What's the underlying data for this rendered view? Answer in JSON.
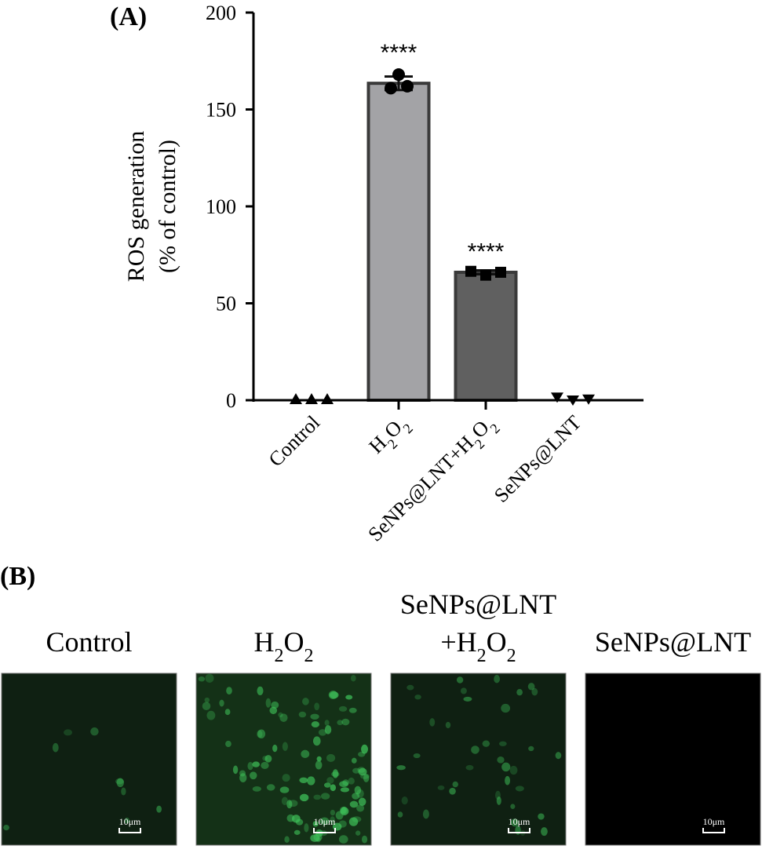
{
  "panel_a_label": "(A)",
  "panel_b_label": "(B)",
  "chart_data": {
    "type": "bar",
    "title": "",
    "ylabel_lines": [
      "ROS generation",
      "(% of control)"
    ],
    "xlabel": "",
    "ylim": [
      0,
      200
    ],
    "yticks": [
      0,
      50,
      100,
      150,
      200
    ],
    "categories": [
      "Control",
      "H2O2",
      "SeNPs@LNT+H2O2",
      "SeNPs@LNT"
    ],
    "values": [
      0,
      163.5,
      66,
      0.7
    ],
    "error_sd": [
      0,
      3.5,
      1,
      0.8
    ],
    "points": [
      [
        0,
        0,
        0
      ],
      [
        161,
        168,
        162
      ],
      [
        66.5,
        64.5,
        66
      ],
      [
        1.5,
        0,
        0.5
      ]
    ],
    "markers": [
      "triangle-up",
      "circle",
      "square",
      "triangle-down"
    ],
    "bar_colors": [
      "#ffffff",
      "#a3a3a6",
      "#606060",
      "#ffffff"
    ],
    "significance": [
      "",
      "****",
      "****",
      ""
    ],
    "grid": false
  },
  "micrographs": [
    {
      "title_lines": [
        "Control"
      ],
      "scale_bar": "10μm",
      "intensity": 0.08
    },
    {
      "title_lines": [
        "H2O2"
      ],
      "scale_bar": "10μm",
      "intensity": 1.0
    },
    {
      "title_lines": [
        "SeNPs@LNT",
        "+H2O2"
      ],
      "scale_bar": "10μm",
      "intensity": 0.35
    },
    {
      "title_lines": [
        "SeNPs@LNT"
      ],
      "scale_bar": "10μm",
      "intensity": 0
    }
  ],
  "colors": {
    "fluorescence": "#3fc35a",
    "background_green": "#0f2012",
    "black": "#000000"
  }
}
